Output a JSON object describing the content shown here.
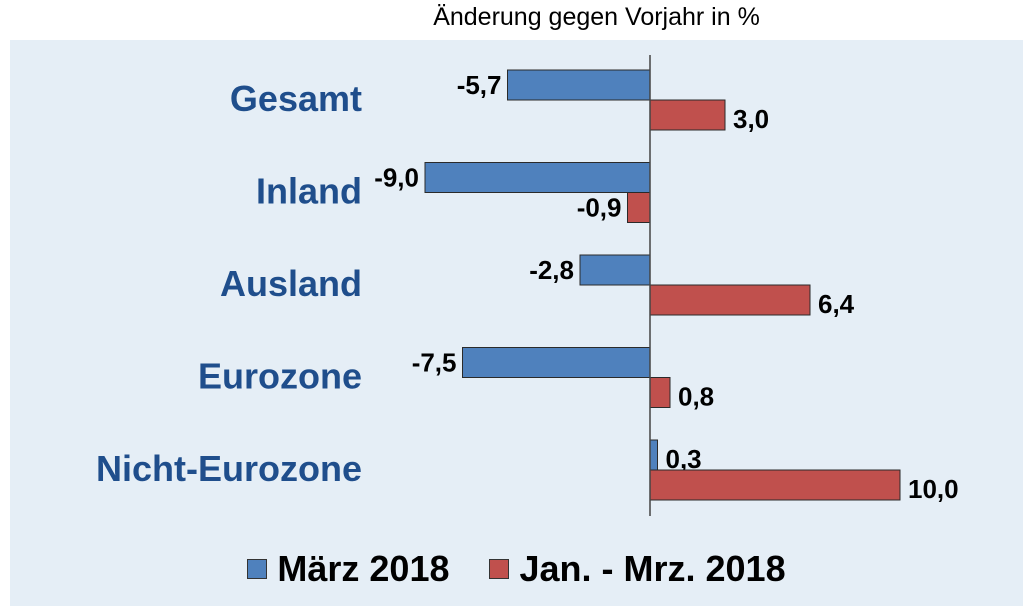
{
  "chart_data": {
    "type": "bar",
    "orientation": "horizontal",
    "subtitle": "Änderung gegen Vorjahr in %",
    "categories": [
      "Gesamt",
      "Inland",
      "Ausland",
      "Eurozone",
      "Nicht-Eurozone"
    ],
    "series": [
      {
        "name": "März 2018",
        "color": "#4f81bd",
        "values": [
          -5.7,
          -9.0,
          -2.8,
          -7.5,
          0.3
        ],
        "labels": [
          "-5,7",
          "-9,0",
          "-2,8",
          "-7,5",
          "0,3"
        ]
      },
      {
        "name": "Jan. - Mrz. 2018",
        "color": "#c0504d",
        "values": [
          3.0,
          -0.9,
          6.4,
          0.8,
          10.0
        ],
        "labels": [
          "3,0",
          "-0,9",
          "6,4",
          "0,8",
          "10,0"
        ]
      }
    ],
    "xlim": [
      -9.5,
      10.5
    ],
    "legend_position": "bottom",
    "grid": false
  }
}
